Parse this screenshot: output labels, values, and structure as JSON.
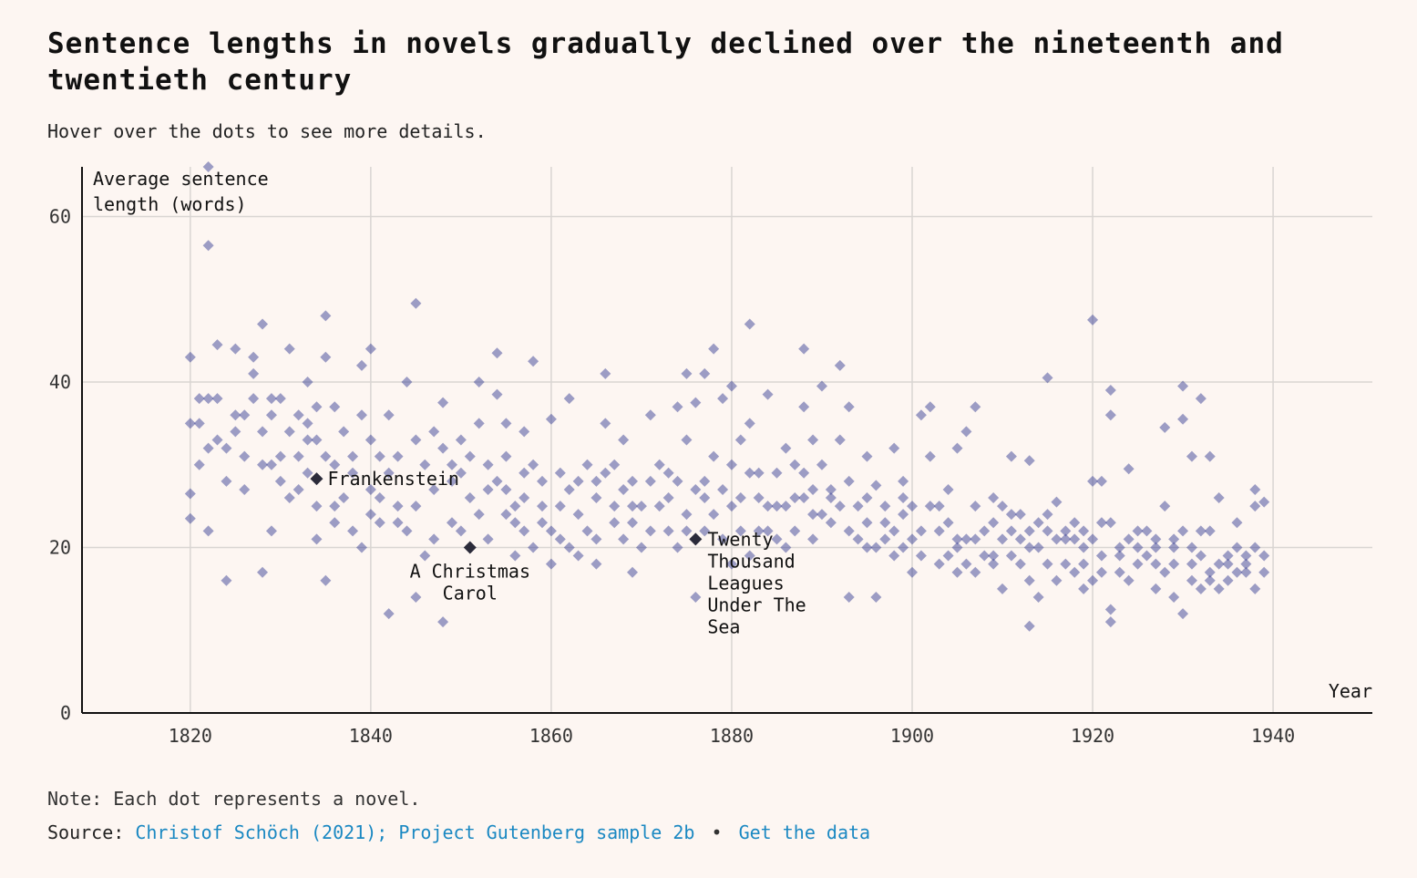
{
  "header": {
    "title": "Sentence lengths in novels gradually declined over the nineteenth and twentieth century",
    "subtitle": "Hover over the dots to see more details."
  },
  "footer": {
    "note": "Note: Each dot represents a novel.",
    "source_prefix": "Source:",
    "source_link": "Christof Schöch (2021); Project Gutenberg sample 2b",
    "separator": "•",
    "data_link": "Get the data"
  },
  "colors": {
    "background": "#fdf6f2",
    "dot": "#3b4196",
    "highlight": "#2b2b3a",
    "grid": "#d9d5d2",
    "link": "#1a88c2"
  },
  "chart_data": {
    "type": "scatter",
    "ylabel": "Average sentence length (words)",
    "xlabel": "Year",
    "xlim": [
      1808,
      1951
    ],
    "ylim": [
      0,
      66
    ],
    "x_ticks": [
      1820,
      1840,
      1860,
      1880,
      1900,
      1920,
      1940
    ],
    "y_ticks": [
      0,
      20,
      40,
      60
    ],
    "grid": true,
    "highlights": [
      {
        "name": "Frankenstein",
        "x": 1834,
        "y": 28.3
      },
      {
        "name": "A Christmas Carol",
        "x": 1851,
        "y": 20.0
      },
      {
        "name": "Twenty Thousand Leagues Under The Sea",
        "x": 1876,
        "y": 21.0
      }
    ],
    "points": [
      [
        1822,
        66
      ],
      [
        1822,
        56.5
      ],
      [
        1820,
        43
      ],
      [
        1823,
        44.5
      ],
      [
        1825,
        44
      ],
      [
        1822,
        38
      ],
      [
        1821,
        35
      ],
      [
        1823,
        33
      ],
      [
        1820,
        26.5
      ],
      [
        1820,
        23.5
      ],
      [
        1822,
        22
      ],
      [
        1824,
        16
      ],
      [
        1824,
        28
      ],
      [
        1826,
        36
      ],
      [
        1825,
        34
      ],
      [
        1827,
        43
      ],
      [
        1828,
        47
      ],
      [
        1828,
        34
      ],
      [
        1828,
        17
      ],
      [
        1829,
        36
      ],
      [
        1829,
        30
      ],
      [
        1830,
        31
      ],
      [
        1831,
        44
      ],
      [
        1830,
        38
      ],
      [
        1832,
        31
      ],
      [
        1833,
        40
      ],
      [
        1833,
        35
      ],
      [
        1832,
        27
      ],
      [
        1834,
        33
      ],
      [
        1834,
        25
      ],
      [
        1834,
        21
      ],
      [
        1835,
        48
      ],
      [
        1835,
        43
      ],
      [
        1836,
        37
      ],
      [
        1836,
        30
      ],
      [
        1835,
        16
      ],
      [
        1837,
        26
      ],
      [
        1838,
        22
      ],
      [
        1839,
        42
      ],
      [
        1840,
        44
      ],
      [
        1840,
        33
      ],
      [
        1840,
        27
      ],
      [
        1841,
        23
      ],
      [
        1839,
        20
      ],
      [
        1842,
        36
      ],
      [
        1842,
        12
      ],
      [
        1843,
        31
      ],
      [
        1844,
        40
      ],
      [
        1845,
        49.5
      ],
      [
        1846,
        30
      ],
      [
        1845,
        25
      ],
      [
        1845,
        14
      ],
      [
        1847,
        34
      ],
      [
        1848,
        37.5
      ],
      [
        1848,
        32
      ],
      [
        1848,
        11
      ],
      [
        1849,
        28
      ],
      [
        1850,
        33
      ],
      [
        1850,
        22
      ],
      [
        1852,
        40
      ],
      [
        1852,
        35
      ],
      [
        1852,
        24
      ],
      [
        1853,
        30
      ],
      [
        1854,
        43.5
      ],
      [
        1854,
        38.5
      ],
      [
        1855,
        35
      ],
      [
        1855,
        27
      ],
      [
        1856,
        25
      ],
      [
        1856,
        19
      ],
      [
        1857,
        34
      ],
      [
        1857,
        22
      ],
      [
        1858,
        42.5
      ],
      [
        1858,
        30
      ],
      [
        1859,
        28
      ],
      [
        1860,
        35.5
      ],
      [
        1860,
        22
      ],
      [
        1860,
        18
      ],
      [
        1861,
        29
      ],
      [
        1862,
        38
      ],
      [
        1862,
        20
      ],
      [
        1863,
        24
      ],
      [
        1864,
        30
      ],
      [
        1865,
        26
      ],
      [
        1865,
        18
      ],
      [
        1866,
        41
      ],
      [
        1866,
        35
      ],
      [
        1866,
        29
      ],
      [
        1867,
        25
      ],
      [
        1868,
        33
      ],
      [
        1868,
        21
      ],
      [
        1869,
        28
      ],
      [
        1869,
        17
      ],
      [
        1870,
        25
      ],
      [
        1871,
        36
      ],
      [
        1871,
        22
      ],
      [
        1872,
        30
      ],
      [
        1873,
        26
      ],
      [
        1874,
        37
      ],
      [
        1874,
        20
      ],
      [
        1875,
        41
      ],
      [
        1875,
        33
      ],
      [
        1876,
        37.5
      ],
      [
        1876,
        14
      ],
      [
        1877,
        28
      ],
      [
        1877,
        41
      ],
      [
        1878,
        44
      ],
      [
        1878,
        24
      ],
      [
        1879,
        38
      ],
      [
        1880,
        39.5
      ],
      [
        1880,
        30
      ],
      [
        1880,
        25
      ],
      [
        1880,
        18
      ],
      [
        1881,
        33
      ],
      [
        1882,
        47
      ],
      [
        1882,
        35
      ],
      [
        1882,
        29
      ],
      [
        1882,
        19
      ],
      [
        1883,
        26
      ],
      [
        1884,
        38.5
      ],
      [
        1884,
        22
      ],
      [
        1885,
        29
      ],
      [
        1886,
        32
      ],
      [
        1886,
        25
      ],
      [
        1887,
        30
      ],
      [
        1888,
        44
      ],
      [
        1888,
        37
      ],
      [
        1888,
        26
      ],
      [
        1889,
        33
      ],
      [
        1889,
        21
      ],
      [
        1890,
        39.5
      ],
      [
        1890,
        30
      ],
      [
        1890,
        24
      ],
      [
        1891,
        27
      ],
      [
        1892,
        42
      ],
      [
        1892,
        33
      ],
      [
        1893,
        37
      ],
      [
        1893,
        22
      ],
      [
        1893,
        14
      ],
      [
        1894,
        25
      ],
      [
        1895,
        31
      ],
      [
        1895,
        20
      ],
      [
        1896,
        27.5
      ],
      [
        1896,
        14
      ],
      [
        1897,
        25
      ],
      [
        1898,
        32
      ],
      [
        1898,
        22
      ],
      [
        1899,
        28
      ],
      [
        1899,
        24
      ],
      [
        1900,
        25
      ],
      [
        1900,
        21
      ],
      [
        1900,
        17
      ],
      [
        1901,
        36
      ],
      [
        1902,
        37
      ],
      [
        1902,
        31
      ],
      [
        1902,
        25
      ],
      [
        1903,
        22
      ],
      [
        1904,
        27
      ],
      [
        1904,
        19
      ],
      [
        1905,
        32
      ],
      [
        1905,
        21
      ],
      [
        1906,
        34
      ],
      [
        1906,
        18
      ],
      [
        1907,
        37
      ],
      [
        1907,
        25
      ],
      [
        1907,
        17
      ],
      [
        1908,
        22
      ],
      [
        1909,
        26
      ],
      [
        1909,
        19
      ],
      [
        1910,
        25
      ],
      [
        1910,
        15
      ],
      [
        1911,
        31
      ],
      [
        1911,
        22
      ],
      [
        1912,
        24
      ],
      [
        1912,
        18
      ],
      [
        1913,
        30.5
      ],
      [
        1913,
        20
      ],
      [
        1913,
        10.5
      ],
      [
        1914,
        23
      ],
      [
        1914,
        14
      ],
      [
        1915,
        40.5
      ],
      [
        1915,
        24
      ],
      [
        1915,
        18
      ],
      [
        1916,
        25.5
      ],
      [
        1916,
        16
      ],
      [
        1917,
        21
      ],
      [
        1918,
        23
      ],
      [
        1918,
        17
      ],
      [
        1919,
        20
      ],
      [
        1919,
        15
      ],
      [
        1920,
        47.5
      ],
      [
        1920,
        28
      ],
      [
        1920,
        21
      ],
      [
        1920,
        16
      ],
      [
        1921,
        28
      ],
      [
        1921,
        19
      ],
      [
        1922,
        39
      ],
      [
        1922,
        36
      ],
      [
        1922,
        23
      ],
      [
        1922,
        11
      ],
      [
        1922,
        12.5
      ],
      [
        1923,
        20
      ],
      [
        1924,
        29.5
      ],
      [
        1924,
        16
      ],
      [
        1925,
        22
      ],
      [
        1925,
        18
      ],
      [
        1926,
        19
      ],
      [
        1927,
        21
      ],
      [
        1927,
        15
      ],
      [
        1928,
        34.5
      ],
      [
        1928,
        25
      ],
      [
        1928,
        17
      ],
      [
        1929,
        20
      ],
      [
        1929,
        14
      ],
      [
        1930,
        39.5
      ],
      [
        1930,
        35.5
      ],
      [
        1930,
        22
      ],
      [
        1930,
        12
      ],
      [
        1931,
        31
      ],
      [
        1931,
        18
      ],
      [
        1932,
        38
      ],
      [
        1932,
        22
      ],
      [
        1932,
        15
      ],
      [
        1933,
        31
      ],
      [
        1933,
        17
      ],
      [
        1934,
        26
      ],
      [
        1934,
        15
      ],
      [
        1935,
        19
      ],
      [
        1936,
        23
      ],
      [
        1936,
        17
      ],
      [
        1937,
        17
      ],
      [
        1938,
        27
      ],
      [
        1938,
        25
      ],
      [
        1938,
        20
      ],
      [
        1938,
        15
      ],
      [
        1939,
        25.5
      ],
      [
        1939,
        19
      ],
      [
        1821,
        30
      ],
      [
        1823,
        38
      ],
      [
        1824,
        32
      ],
      [
        1826,
        27
      ],
      [
        1827,
        38
      ],
      [
        1828,
        30
      ],
      [
        1829,
        22
      ],
      [
        1830,
        28
      ],
      [
        1831,
        34
      ],
      [
        1832,
        36
      ],
      [
        1833,
        29
      ],
      [
        1835,
        31
      ],
      [
        1836,
        23
      ],
      [
        1837,
        34
      ],
      [
        1838,
        29
      ],
      [
        1839,
        36
      ],
      [
        1841,
        26
      ],
      [
        1842,
        29
      ],
      [
        1843,
        25
      ],
      [
        1844,
        22
      ],
      [
        1846,
        19
      ],
      [
        1847,
        27
      ],
      [
        1849,
        23
      ],
      [
        1850,
        29
      ],
      [
        1851,
        26
      ],
      [
        1853,
        21
      ],
      [
        1854,
        28
      ],
      [
        1855,
        31
      ],
      [
        1856,
        23
      ],
      [
        1857,
        29
      ],
      [
        1858,
        20
      ],
      [
        1859,
        23
      ],
      [
        1861,
        25
      ],
      [
        1862,
        27
      ],
      [
        1863,
        28
      ],
      [
        1864,
        22
      ],
      [
        1865,
        21
      ],
      [
        1867,
        30
      ],
      [
        1868,
        27
      ],
      [
        1869,
        23
      ],
      [
        1870,
        20
      ],
      [
        1872,
        25
      ],
      [
        1873,
        22
      ],
      [
        1874,
        28
      ],
      [
        1875,
        24
      ],
      [
        1876,
        27
      ],
      [
        1877,
        22
      ],
      [
        1878,
        31
      ],
      [
        1879,
        21
      ],
      [
        1881,
        26
      ],
      [
        1883,
        22
      ],
      [
        1884,
        25
      ],
      [
        1885,
        21
      ],
      [
        1886,
        20
      ],
      [
        1887,
        26
      ],
      [
        1888,
        29
      ],
      [
        1889,
        24
      ],
      [
        1891,
        23
      ],
      [
        1892,
        25
      ],
      [
        1894,
        21
      ],
      [
        1895,
        23
      ],
      [
        1896,
        20
      ],
      [
        1897,
        23
      ],
      [
        1898,
        19
      ],
      [
        1899,
        20
      ],
      [
        1901,
        22
      ],
      [
        1903,
        18
      ],
      [
        1904,
        23
      ],
      [
        1905,
        17
      ],
      [
        1906,
        21
      ],
      [
        1908,
        19
      ],
      [
        1909,
        23
      ],
      [
        1910,
        21
      ],
      [
        1911,
        19
      ],
      [
        1912,
        21
      ],
      [
        1913,
        22
      ],
      [
        1914,
        20
      ],
      [
        1916,
        21
      ],
      [
        1917,
        18
      ],
      [
        1918,
        21
      ],
      [
        1919,
        18
      ],
      [
        1921,
        23
      ],
      [
        1923,
        17
      ],
      [
        1924,
        21
      ],
      [
        1926,
        22
      ],
      [
        1927,
        18
      ],
      [
        1929,
        18
      ],
      [
        1931,
        20
      ],
      [
        1932,
        19
      ],
      [
        1933,
        16
      ],
      [
        1934,
        18
      ],
      [
        1935,
        16
      ],
      [
        1936,
        20
      ],
      [
        1937,
        19
      ],
      [
        1939,
        17
      ],
      [
        1820,
        35
      ],
      [
        1821,
        38
      ],
      [
        1822,
        32
      ],
      [
        1825,
        36
      ],
      [
        1826,
        31
      ],
      [
        1827,
        41
      ],
      [
        1829,
        38
      ],
      [
        1831,
        26
      ],
      [
        1833,
        33
      ],
      [
        1834,
        37
      ],
      [
        1836,
        25
      ],
      [
        1838,
        31
      ],
      [
        1840,
        24
      ],
      [
        1841,
        31
      ],
      [
        1843,
        23
      ],
      [
        1845,
        33
      ],
      [
        1847,
        21
      ],
      [
        1849,
        30
      ],
      [
        1851,
        31
      ],
      [
        1853,
        27
      ],
      [
        1855,
        24
      ],
      [
        1857,
        26
      ],
      [
        1859,
        25
      ],
      [
        1861,
        21
      ],
      [
        1863,
        19
      ],
      [
        1865,
        28
      ],
      [
        1867,
        23
      ],
      [
        1869,
        25
      ],
      [
        1871,
        28
      ],
      [
        1873,
        29
      ],
      [
        1875,
        22
      ],
      [
        1877,
        26
      ],
      [
        1879,
        27
      ],
      [
        1881,
        22
      ],
      [
        1883,
        29
      ],
      [
        1885,
        25
      ],
      [
        1887,
        22
      ],
      [
        1889,
        27
      ],
      [
        1891,
        26
      ],
      [
        1893,
        28
      ],
      [
        1895,
        26
      ],
      [
        1897,
        21
      ],
      [
        1899,
        26
      ],
      [
        1901,
        19
      ],
      [
        1903,
        25
      ],
      [
        1905,
        20
      ],
      [
        1907,
        21
      ],
      [
        1909,
        18
      ],
      [
        1911,
        24
      ],
      [
        1913,
        16
      ],
      [
        1915,
        22
      ],
      [
        1917,
        22
      ],
      [
        1919,
        22
      ],
      [
        1921,
        17
      ],
      [
        1923,
        19
      ],
      [
        1925,
        20
      ],
      [
        1927,
        20
      ],
      [
        1929,
        21
      ],
      [
        1931,
        16
      ],
      [
        1933,
        22
      ],
      [
        1935,
        18
      ],
      [
        1937,
        18
      ]
    ]
  }
}
